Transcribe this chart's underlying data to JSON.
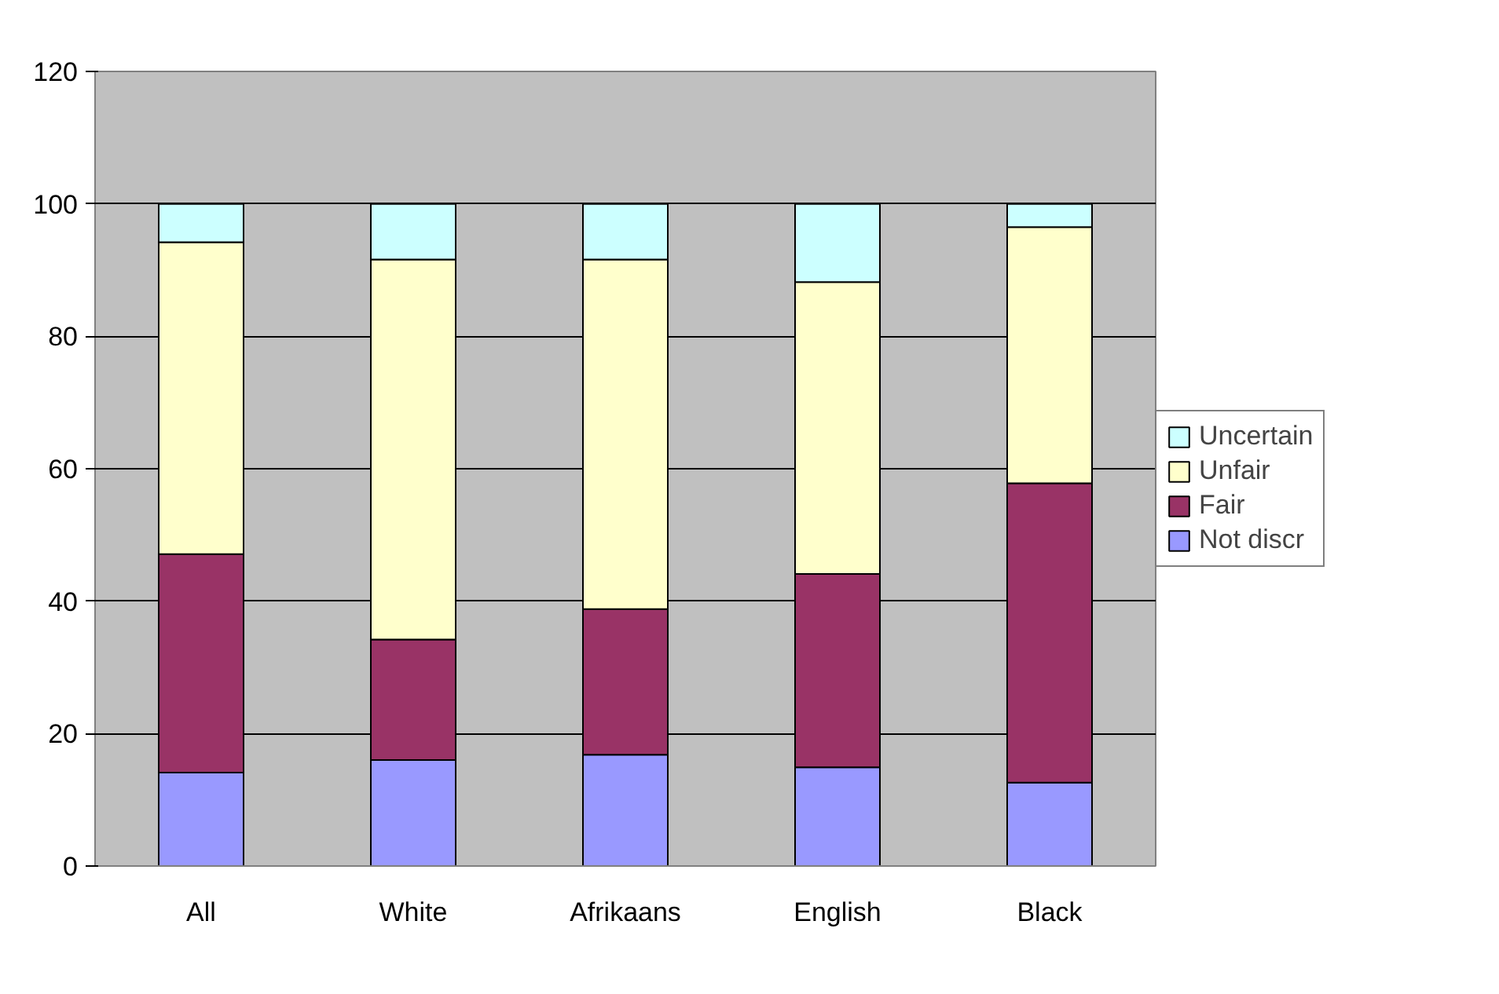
{
  "chart_data": {
    "type": "bar",
    "stacked": true,
    "categories": [
      "All",
      "White",
      "Afrikaans",
      "English",
      "Black"
    ],
    "series": [
      {
        "name": "Not discr",
        "color": "#9999ff",
        "values": [
          14.1,
          16.0,
          16.8,
          14.9,
          12.6
        ]
      },
      {
        "name": "Fair",
        "color": "#993366",
        "values": [
          33.0,
          18.2,
          22.0,
          29.2,
          45.2
        ]
      },
      {
        "name": "Unfair",
        "color": "#ffffcc",
        "values": [
          47.1,
          57.4,
          52.8,
          44.1,
          38.7
        ]
      },
      {
        "name": "Uncertain",
        "color": "#ccffff",
        "values": [
          5.8,
          8.4,
          8.4,
          11.8,
          3.5
        ]
      }
    ],
    "ylim": [
      0,
      120
    ],
    "yticks": [
      0,
      20,
      40,
      60,
      80,
      100,
      120
    ],
    "grid": "y",
    "legend": "right"
  }
}
